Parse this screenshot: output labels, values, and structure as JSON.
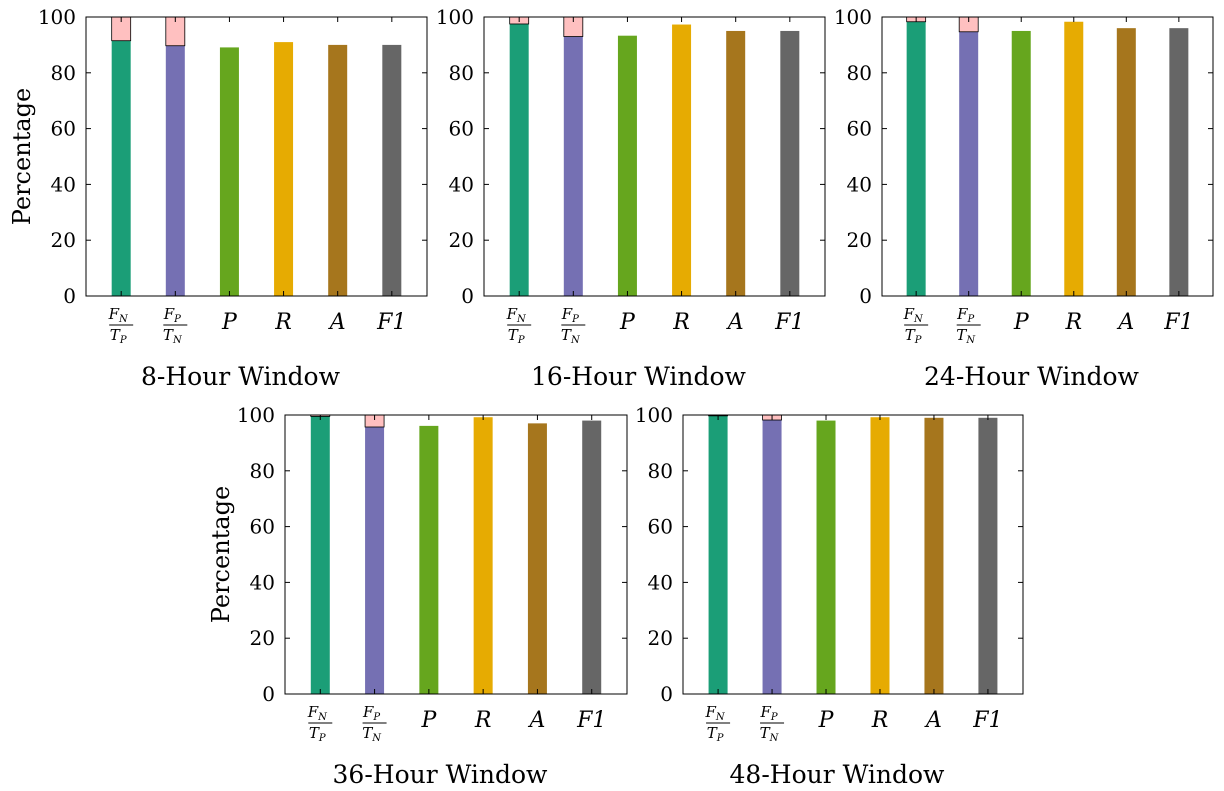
{
  "chart_data": [
    {
      "type": "bar",
      "title": "8-Hour Window",
      "ylabel": "Percentage",
      "ylim": [
        0,
        100
      ],
      "yticks": [
        0,
        20,
        40,
        60,
        80,
        100
      ],
      "categories": [
        "FN/TP",
        "FP/TN",
        "P",
        "R",
        "A",
        "F1"
      ],
      "colors": [
        "#1b9e77",
        "#7570b3",
        "#66a61e",
        "#e6ab02",
        "#a6761d",
        "#666666"
      ],
      "values": [
        91.5,
        89.7,
        89.1,
        91.0,
        90.0,
        90.0
      ],
      "stacked_remainder": [
        8.5,
        10.3,
        0,
        0,
        0,
        0
      ],
      "remainder_color": "#ffc0c0"
    },
    {
      "type": "bar",
      "title": "16-Hour Window",
      "ylabel": "",
      "ylim": [
        0,
        100
      ],
      "yticks": [
        0,
        20,
        40,
        60,
        80,
        100
      ],
      "categories": [
        "FN/TP",
        "FP/TN",
        "P",
        "R",
        "A",
        "F1"
      ],
      "colors": [
        "#1b9e77",
        "#7570b3",
        "#66a61e",
        "#e6ab02",
        "#a6761d",
        "#666666"
      ],
      "values": [
        97.5,
        93.0,
        93.3,
        97.3,
        95.0,
        95.0
      ],
      "stacked_remainder": [
        2.5,
        7.0,
        0,
        0,
        0,
        0
      ],
      "remainder_color": "#ffc0c0"
    },
    {
      "type": "bar",
      "title": "24-Hour Window",
      "ylabel": "",
      "ylim": [
        0,
        100
      ],
      "yticks": [
        0,
        20,
        40,
        60,
        80,
        100
      ],
      "categories": [
        "FN/TP",
        "FP/TN",
        "P",
        "R",
        "A",
        "F1"
      ],
      "colors": [
        "#1b9e77",
        "#7570b3",
        "#66a61e",
        "#e6ab02",
        "#a6761d",
        "#666666"
      ],
      "values": [
        98.3,
        94.7,
        95.0,
        98.3,
        96.0,
        96.0
      ],
      "stacked_remainder": [
        1.7,
        5.3,
        0,
        0,
        0,
        0
      ],
      "remainder_color": "#ffc0c0"
    },
    {
      "type": "bar",
      "title": "36-Hour Window",
      "ylabel": "Percentage",
      "ylim": [
        0,
        100
      ],
      "yticks": [
        0,
        20,
        40,
        60,
        80,
        100
      ],
      "categories": [
        "FN/TP",
        "FP/TN",
        "P",
        "R",
        "A",
        "F1"
      ],
      "colors": [
        "#1b9e77",
        "#7570b3",
        "#66a61e",
        "#e6ab02",
        "#a6761d",
        "#666666"
      ],
      "values": [
        99.5,
        95.7,
        96.1,
        99.2,
        97.0,
        98.0
      ],
      "stacked_remainder": [
        0.5,
        4.3,
        0,
        0,
        0,
        0
      ],
      "remainder_color": "#ffc0c0"
    },
    {
      "type": "bar",
      "title": "48-Hour Window",
      "ylabel": "",
      "ylim": [
        0,
        100
      ],
      "yticks": [
        0,
        20,
        40,
        60,
        80,
        100
      ],
      "categories": [
        "FN/TP",
        "FP/TN",
        "P",
        "R",
        "A",
        "F1"
      ],
      "colors": [
        "#1b9e77",
        "#7570b3",
        "#66a61e",
        "#e6ab02",
        "#a6761d",
        "#666666"
      ],
      "values": [
        99.7,
        98.2,
        98.0,
        99.2,
        99.0,
        99.0
      ],
      "stacked_remainder": [
        0.3,
        1.8,
        0,
        0,
        0,
        0
      ],
      "remainder_color": "#ffc0c0"
    }
  ]
}
